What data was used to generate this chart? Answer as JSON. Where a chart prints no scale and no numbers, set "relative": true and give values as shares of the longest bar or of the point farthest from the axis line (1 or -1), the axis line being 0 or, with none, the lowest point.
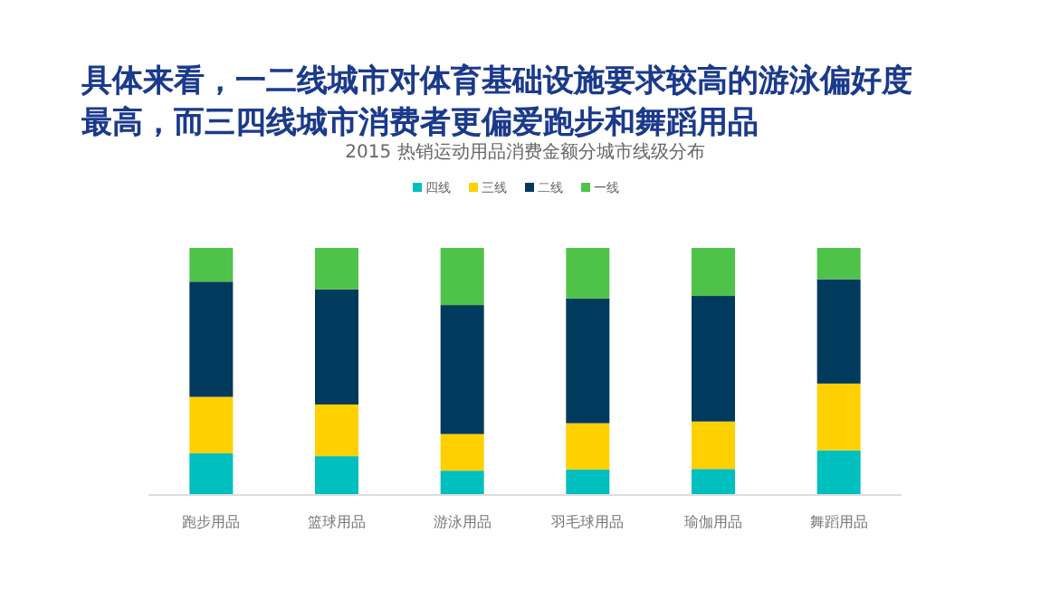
{
  "chart_data": {
    "type": "bar",
    "stacked": true,
    "relative": true,
    "legend": "top",
    "title": "具体来看，一二线城市对体育基础设施要求较高的游泳偏好度最高，而三四线城市消费者更偏爱跑步和舞蹈用品",
    "subtitle": "2015 热销运动用品消费金额分城市线级分布",
    "categories": [
      "跑步用品",
      "篮球用品",
      "游泳用品",
      "羽毛球用品",
      "瑜伽用品",
      "舞蹈用品"
    ],
    "series": [
      {
        "name": "四线",
        "color": "#00bfbf",
        "values": [
          0.166,
          0.154,
          0.095,
          0.1,
          0.102,
          0.178
        ]
      },
      {
        "name": "三线",
        "color": "#ffd000",
        "values": [
          0.229,
          0.21,
          0.149,
          0.188,
          0.193,
          0.271
        ]
      },
      {
        "name": "二线",
        "color": "#003a5c",
        "values": [
          0.468,
          0.468,
          0.524,
          0.507,
          0.51,
          0.424
        ]
      },
      {
        "name": "一线",
        "color": "#4fc24a",
        "values": [
          0.137,
          0.168,
          0.232,
          0.205,
          0.195,
          0.127
        ]
      }
    ]
  }
}
